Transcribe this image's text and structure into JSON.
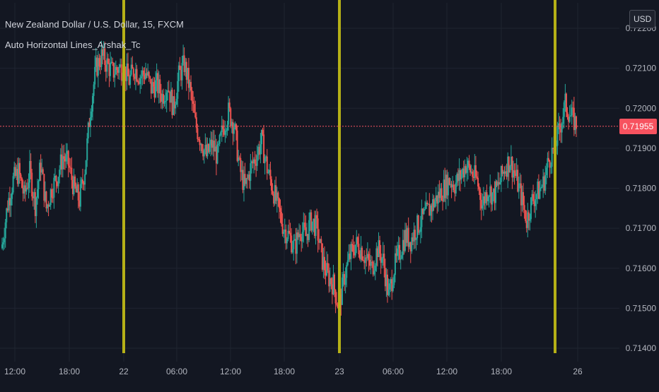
{
  "legend": {
    "symbol_line": "New Zealand Dollar / U.S. Dollar, 15, FXCM",
    "indicator_line": "Auto Horizontal Lines_Arshak_Tc"
  },
  "currency_badge": "USD",
  "last_price_label": "0.71955",
  "colors": {
    "background": "#131722",
    "grid": "#1f2430",
    "up": "#26a69a",
    "down": "#ef5350",
    "vertical_lines": "#b5b017",
    "price_line": "#f7525f",
    "axis_text": "#b2b5be"
  },
  "chart_data": {
    "type": "candlestick",
    "y_ticks": [
      "0.72200",
      "0.72100",
      "0.72000",
      "0.71900",
      "0.71800",
      "0.71700",
      "0.71600",
      "0.71500",
      "0.71400"
    ],
    "x_ticks": [
      "12:00",
      "18:00",
      "22",
      "06:00",
      "12:00",
      "18:00",
      "23",
      "06:00",
      "12:00",
      "18:00",
      "26"
    ],
    "ylim": [
      0.71385,
      0.7224
    ],
    "last_price": 0.71955,
    "vertical_line_labels": [
      "22",
      "23",
      "26"
    ],
    "close_path": [
      [
        0,
        0.7166
      ],
      [
        5,
        0.7176
      ],
      [
        10,
        0.7182
      ],
      [
        15,
        0.7184
      ],
      [
        20,
        0.7178
      ],
      [
        25,
        0.7184
      ],
      [
        30,
        0.7176
      ],
      [
        35,
        0.7186
      ],
      [
        40,
        0.7175
      ],
      [
        45,
        0.718
      ],
      [
        50,
        0.7183
      ],
      [
        55,
        0.7188
      ],
      [
        60,
        0.7186
      ],
      [
        65,
        0.718
      ],
      [
        70,
        0.7177
      ],
      [
        75,
        0.7185
      ],
      [
        80,
        0.72
      ],
      [
        85,
        0.721
      ],
      [
        90,
        0.7213
      ],
      [
        95,
        0.7211
      ],
      [
        100,
        0.7209
      ],
      [
        105,
        0.721
      ],
      [
        110,
        0.721
      ],
      [
        115,
        0.7207
      ],
      [
        120,
        0.721
      ],
      [
        125,
        0.7208
      ],
      [
        130,
        0.7209
      ],
      [
        135,
        0.7205
      ],
      [
        140,
        0.7206
      ],
      [
        145,
        0.7203
      ],
      [
        150,
        0.7206
      ],
      [
        155,
        0.72
      ],
      [
        160,
        0.7208
      ],
      [
        165,
        0.7211
      ],
      [
        170,
        0.7205
      ],
      [
        175,
        0.7196
      ],
      [
        180,
        0.7192
      ],
      [
        185,
        0.7188
      ],
      [
        190,
        0.7191
      ],
      [
        195,
        0.7188
      ],
      [
        200,
        0.7195
      ],
      [
        205,
        0.7199
      ],
      [
        210,
        0.7196
      ],
      [
        215,
        0.7185
      ],
      [
        220,
        0.718
      ],
      [
        225,
        0.7185
      ],
      [
        230,
        0.7188
      ],
      [
        235,
        0.7192
      ],
      [
        240,
        0.7185
      ],
      [
        245,
        0.718
      ],
      [
        250,
        0.7175
      ],
      [
        255,
        0.717
      ],
      [
        260,
        0.7168
      ],
      [
        265,
        0.7165
      ],
      [
        270,
        0.717
      ],
      [
        275,
        0.7168
      ],
      [
        280,
        0.7172
      ],
      [
        285,
        0.717
      ],
      [
        290,
        0.7162
      ],
      [
        295,
        0.7158
      ],
      [
        300,
        0.7156
      ],
      [
        305,
        0.715
      ],
      [
        310,
        0.7158
      ],
      [
        315,
        0.7163
      ],
      [
        320,
        0.7166
      ],
      [
        325,
        0.7165
      ],
      [
        330,
        0.7162
      ],
      [
        335,
        0.716
      ],
      [
        340,
        0.7165
      ],
      [
        345,
        0.7162
      ],
      [
        350,
        0.7153
      ],
      [
        355,
        0.716
      ],
      [
        360,
        0.7164
      ],
      [
        365,
        0.7168
      ],
      [
        370,
        0.7167
      ],
      [
        375,
        0.717
      ],
      [
        380,
        0.7172
      ],
      [
        385,
        0.7174
      ],
      [
        390,
        0.7176
      ],
      [
        395,
        0.7178
      ],
      [
        400,
        0.718
      ],
      [
        405,
        0.7182
      ],
      [
        410,
        0.7181
      ],
      [
        415,
        0.7183
      ],
      [
        420,
        0.7186
      ],
      [
        425,
        0.7184
      ],
      [
        430,
        0.7182
      ],
      [
        435,
        0.7176
      ],
      [
        440,
        0.718
      ],
      [
        445,
        0.7178
      ],
      [
        450,
        0.7181
      ],
      [
        455,
        0.7185
      ],
      [
        460,
        0.7187
      ],
      [
        465,
        0.7183
      ],
      [
        470,
        0.7178
      ],
      [
        475,
        0.7172
      ],
      [
        480,
        0.7177
      ],
      [
        485,
        0.7179
      ],
      [
        490,
        0.7181
      ],
      [
        495,
        0.7187
      ],
      [
        500,
        0.719
      ],
      [
        505,
        0.7195
      ],
      [
        510,
        0.7201
      ],
      [
        515,
        0.7198
      ],
      [
        520,
        0.7196
      ]
    ]
  }
}
